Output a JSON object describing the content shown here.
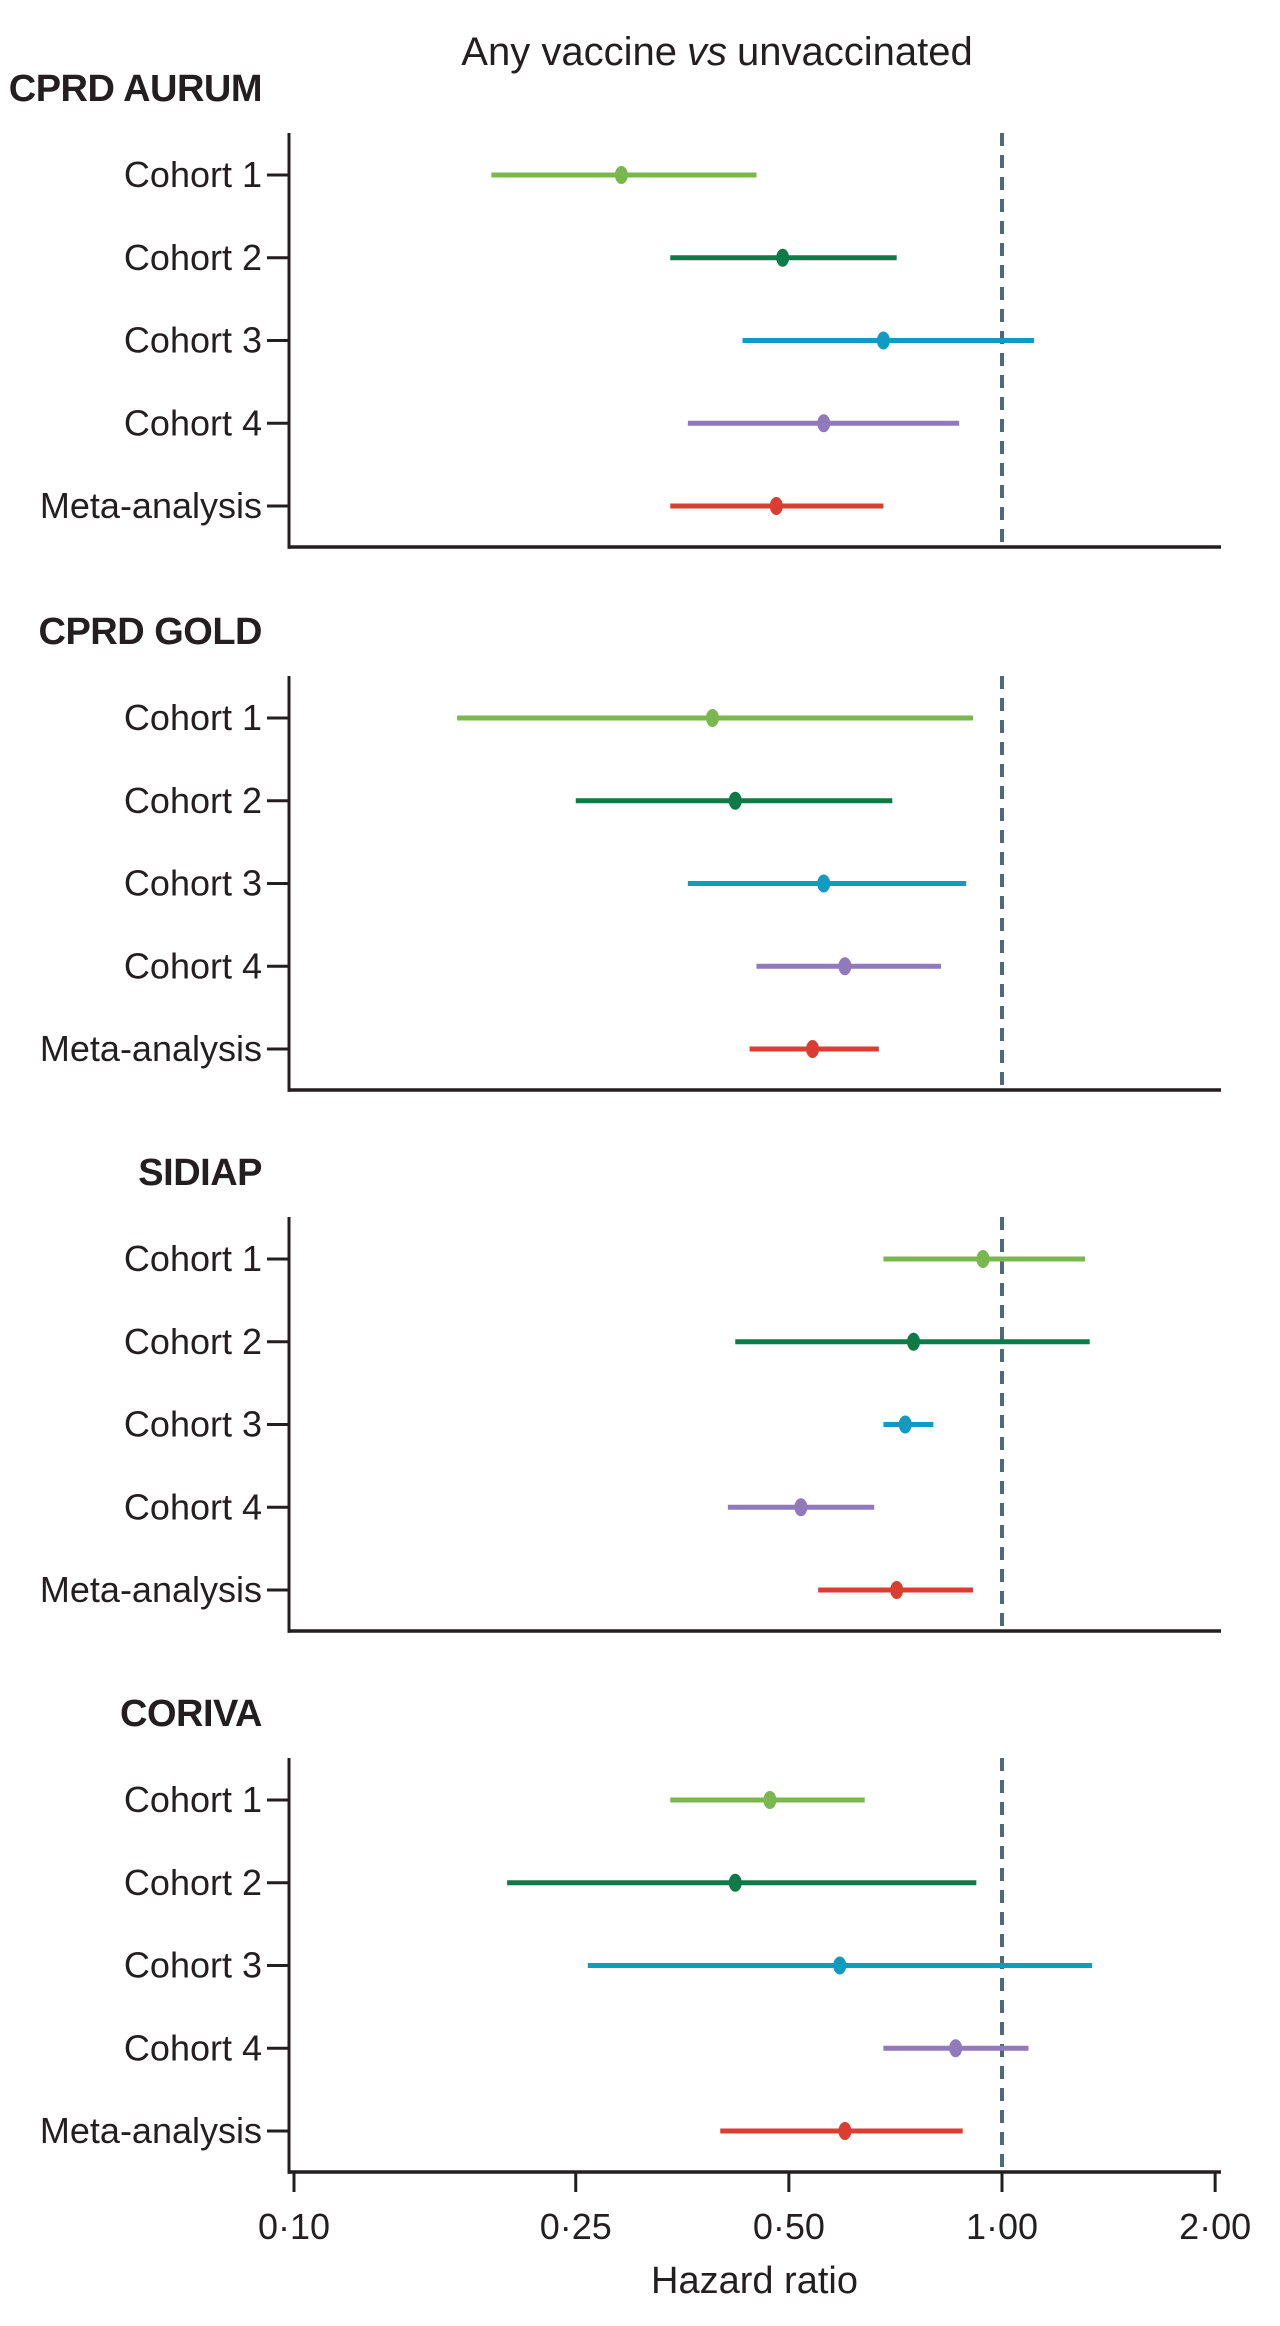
{
  "figure_title": {
    "prefix": "Any vaccine",
    "italic": "vs",
    "suffix": "unvaccinated"
  },
  "x_axis": {
    "label": "Hazard ratio",
    "scale": "log",
    "min": 0.1,
    "max": 2.0,
    "ticks": [
      {
        "value": 0.1,
        "label": "0·10"
      },
      {
        "value": 0.25,
        "label": "0·25"
      },
      {
        "value": 0.5,
        "label": "0·50"
      },
      {
        "value": 1.0,
        "label": "1·00"
      },
      {
        "value": 2.0,
        "label": "2·00"
      }
    ],
    "reference_line_value": 1.0
  },
  "colors": {
    "cohort1": "#7ab74c",
    "cohort2": "#0e7a47",
    "cohort3": "#129bc0",
    "cohort4": "#9179bb",
    "meta": "#d93e30",
    "reference_line": "#4e6a78",
    "axis_ink": "#231f20"
  },
  "chart_data": [
    {
      "type": "scatter",
      "subtype": "forest-plot",
      "title": "CPRD AURUM",
      "xlabel": "Hazard ratio",
      "x_scale": "log",
      "xlim": [
        0.1,
        2.0
      ],
      "reference_line": 1.0,
      "categories": [
        "Cohort 1",
        "Cohort 2",
        "Cohort 3",
        "Cohort 4",
        "Meta-analysis"
      ],
      "points": [
        {
          "label": "Cohort 1",
          "hr": 0.29,
          "ci_low": 0.19,
          "ci_high": 0.45,
          "color_key": "cohort1"
        },
        {
          "label": "Cohort 2",
          "hr": 0.49,
          "ci_low": 0.34,
          "ci_high": 0.71,
          "color_key": "cohort2"
        },
        {
          "label": "Cohort 3",
          "hr": 0.68,
          "ci_low": 0.43,
          "ci_high": 1.11,
          "color_key": "cohort3"
        },
        {
          "label": "Cohort 4",
          "hr": 0.56,
          "ci_low": 0.36,
          "ci_high": 0.87,
          "color_key": "cohort4"
        },
        {
          "label": "Meta-analysis",
          "hr": 0.48,
          "ci_low": 0.34,
          "ci_high": 0.68,
          "color_key": "meta"
        }
      ]
    },
    {
      "type": "scatter",
      "subtype": "forest-plot",
      "title": "CPRD GOLD",
      "xlabel": "Hazard ratio",
      "x_scale": "log",
      "xlim": [
        0.1,
        2.0
      ],
      "reference_line": 1.0,
      "categories": [
        "Cohort 1",
        "Cohort 2",
        "Cohort 3",
        "Cohort 4",
        "Meta-analysis"
      ],
      "points": [
        {
          "label": "Cohort 1",
          "hr": 0.39,
          "ci_low": 0.17,
          "ci_high": 0.91,
          "color_key": "cohort1"
        },
        {
          "label": "Cohort 2",
          "hr": 0.42,
          "ci_low": 0.25,
          "ci_high": 0.7,
          "color_key": "cohort2"
        },
        {
          "label": "Cohort 3",
          "hr": 0.56,
          "ci_low": 0.36,
          "ci_high": 0.89,
          "color_key": "cohort3"
        },
        {
          "label": "Cohort 4",
          "hr": 0.6,
          "ci_low": 0.45,
          "ci_high": 0.82,
          "color_key": "cohort4"
        },
        {
          "label": "Meta-analysis",
          "hr": 0.54,
          "ci_low": 0.44,
          "ci_high": 0.67,
          "color_key": "meta"
        }
      ]
    },
    {
      "type": "scatter",
      "subtype": "forest-plot",
      "title": "SIDIAP",
      "xlabel": "Hazard ratio",
      "x_scale": "log",
      "xlim": [
        0.1,
        2.0
      ],
      "reference_line": 1.0,
      "categories": [
        "Cohort 1",
        "Cohort 2",
        "Cohort 3",
        "Cohort 4",
        "Meta-analysis"
      ],
      "points": [
        {
          "label": "Cohort 1",
          "hr": 0.94,
          "ci_low": 0.68,
          "ci_high": 1.31,
          "color_key": "cohort1"
        },
        {
          "label": "Cohort 2",
          "hr": 0.75,
          "ci_low": 0.42,
          "ci_high": 1.33,
          "color_key": "cohort2"
        },
        {
          "label": "Cohort 3",
          "hr": 0.73,
          "ci_low": 0.68,
          "ci_high": 0.8,
          "color_key": "cohort3"
        },
        {
          "label": "Cohort 4",
          "hr": 0.52,
          "ci_low": 0.41,
          "ci_high": 0.66,
          "color_key": "cohort4"
        },
        {
          "label": "Meta-analysis",
          "hr": 0.71,
          "ci_low": 0.55,
          "ci_high": 0.91,
          "color_key": "meta"
        }
      ]
    },
    {
      "type": "scatter",
      "subtype": "forest-plot",
      "title": "CORIVA",
      "xlabel": "Hazard ratio",
      "x_scale": "log",
      "xlim": [
        0.1,
        2.0
      ],
      "reference_line": 1.0,
      "categories": [
        "Cohort 1",
        "Cohort 2",
        "Cohort 3",
        "Cohort 4",
        "Meta-analysis"
      ],
      "points": [
        {
          "label": "Cohort 1",
          "hr": 0.47,
          "ci_low": 0.34,
          "ci_high": 0.64,
          "color_key": "cohort1"
        },
        {
          "label": "Cohort 2",
          "hr": 0.42,
          "ci_low": 0.2,
          "ci_high": 0.92,
          "color_key": "cohort2"
        },
        {
          "label": "Cohort 3",
          "hr": 0.59,
          "ci_low": 0.26,
          "ci_high": 1.34,
          "color_key": "cohort3"
        },
        {
          "label": "Cohort 4",
          "hr": 0.86,
          "ci_low": 0.68,
          "ci_high": 1.09,
          "color_key": "cohort4"
        },
        {
          "label": "Meta-analysis",
          "hr": 0.6,
          "ci_low": 0.4,
          "ci_high": 0.88,
          "color_key": "meta"
        }
      ]
    }
  ]
}
